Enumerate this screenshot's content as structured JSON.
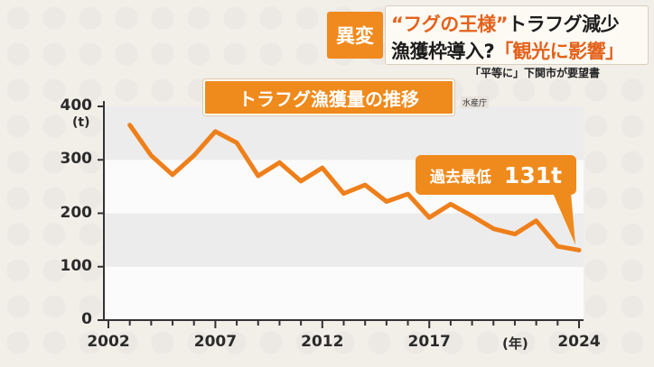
{
  "banner": {
    "tag": "異変",
    "line1_a": "“フグの王様”",
    "line1_b": "トラフグ減少",
    "line2_a": "漁獲枠導入?",
    "line2_b": "「観光に影響」",
    "subcaption": "「平等に」下関市が要望書"
  },
  "callout": {
    "label": "過去最低",
    "value": "131t"
  },
  "colors": {
    "accent": "#ef8a1c",
    "line": "#ee7f1a",
    "band": "#e0e0e0"
  },
  "chart_data": {
    "type": "line",
    "title": "トラフグ漁獲量の推移",
    "source": "水産庁",
    "ylabel": "(t)",
    "xlabel": "(年)",
    "ylim": [
      0,
      400
    ],
    "yticks": [
      "0",
      "100",
      "200",
      "300",
      "400"
    ],
    "xlim": [
      2002,
      2024
    ],
    "xticks": [
      "2002",
      "2007",
      "2012",
      "2017",
      "2024"
    ],
    "grid": true,
    "series": [
      {
        "x": [
          2003,
          2004,
          2005,
          2006,
          2007,
          2008,
          2009,
          2010,
          2011,
          2012,
          2013,
          2014,
          2015,
          2016,
          2017,
          2018,
          2019,
          2020,
          2021,
          2022,
          2023,
          2024
        ],
        "values": [
          365,
          308,
          272,
          308,
          353,
          332,
          270,
          295,
          260,
          285,
          237,
          253,
          222,
          236,
          192,
          217,
          195,
          171,
          161,
          186,
          138,
          131
        ]
      }
    ]
  }
}
